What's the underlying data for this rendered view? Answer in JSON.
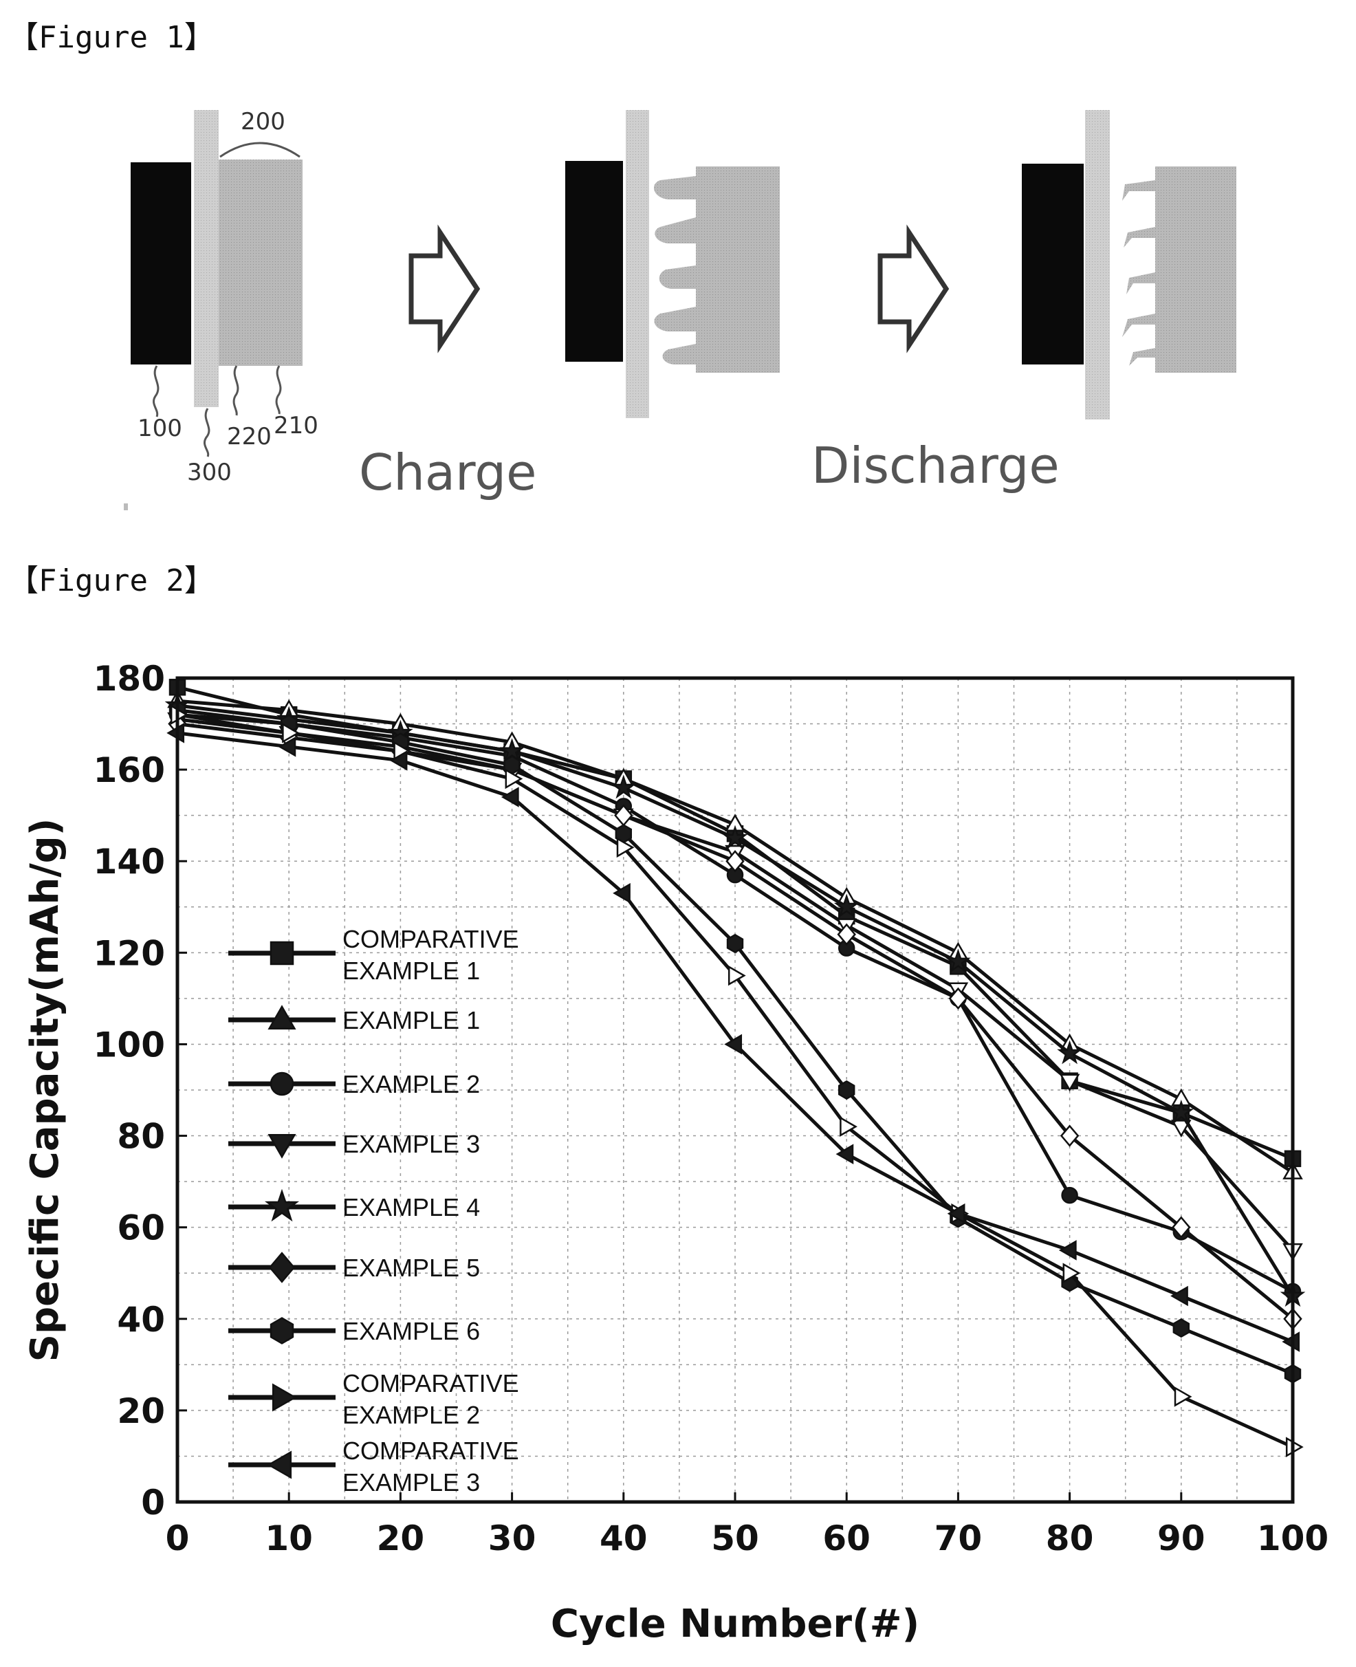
{
  "figure1": {
    "label": "【Figure 1】",
    "ref_numbers": {
      "n200": "200",
      "n100": "100",
      "n300": "300",
      "n220": "220",
      "n210": "210"
    },
    "captions": {
      "charge": "Charge",
      "discharge": "Discharge"
    }
  },
  "figure2": {
    "label": "【Figure 2】"
  },
  "chart_data": {
    "type": "line",
    "xlabel": "Cycle Number(#)",
    "ylabel": "Specific Capacity(mAh/g)",
    "xlim": [
      0,
      100
    ],
    "ylim": [
      0,
      180
    ],
    "xticks": [
      "0",
      "10",
      "20",
      "30",
      "40",
      "50",
      "60",
      "70",
      "80",
      "90",
      "100"
    ],
    "yticks": [
      "0",
      "20",
      "40",
      "60",
      "80",
      "100",
      "120",
      "140",
      "160",
      "180"
    ],
    "grid": true,
    "legend_position": "left",
    "x": [
      0,
      10,
      20,
      30,
      40,
      50,
      60,
      70,
      80,
      90,
      100
    ],
    "series": [
      {
        "name_lines": [
          "COMPARATIVE",
          "EXAMPLE 1"
        ],
        "marker": "square",
        "values": [
          178,
          172,
          168,
          164,
          158,
          146,
          128,
          117,
          92,
          85,
          75
        ]
      },
      {
        "name_lines": [
          "EXAMPLE 1"
        ],
        "marker": "triangle-up",
        "values": [
          175,
          173,
          170,
          166,
          158,
          148,
          132,
          120,
          100,
          88,
          72
        ]
      },
      {
        "name_lines": [
          "EXAMPLE 2"
        ],
        "marker": "circle",
        "values": [
          172,
          170,
          167,
          163,
          152,
          137,
          121,
          110,
          67,
          59,
          46
        ]
      },
      {
        "name_lines": [
          "EXAMPLE 3"
        ],
        "marker": "triangle-down",
        "values": [
          171,
          168,
          165,
          160,
          150,
          142,
          126,
          112,
          92,
          82,
          55
        ]
      },
      {
        "name_lines": [
          "EXAMPLE 4"
        ],
        "marker": "star",
        "values": [
          174,
          171,
          168,
          164,
          156,
          145,
          130,
          118,
          98,
          85,
          45
        ]
      },
      {
        "name_lines": [
          "EXAMPLE 5"
        ],
        "marker": "diamond",
        "values": [
          170,
          167,
          164,
          160,
          150,
          140,
          124,
          110,
          80,
          60,
          40
        ]
      },
      {
        "name_lines": [
          "EXAMPLE 6"
        ],
        "marker": "hexagon",
        "values": [
          173,
          170,
          166,
          161,
          146,
          122,
          90,
          62,
          48,
          38,
          28
        ]
      },
      {
        "name_lines": [
          "COMPARATIVE",
          "EXAMPLE 2"
        ],
        "marker": "triangle-right",
        "values": [
          172,
          168,
          164,
          158,
          143,
          115,
          82,
          63,
          50,
          23,
          12
        ]
      },
      {
        "name_lines": [
          "COMPARATIVE",
          "EXAMPLE 3"
        ],
        "marker": "triangle-left",
        "values": [
          168,
          165,
          162,
          154,
          133,
          100,
          76,
          63,
          55,
          45,
          35
        ]
      }
    ]
  }
}
